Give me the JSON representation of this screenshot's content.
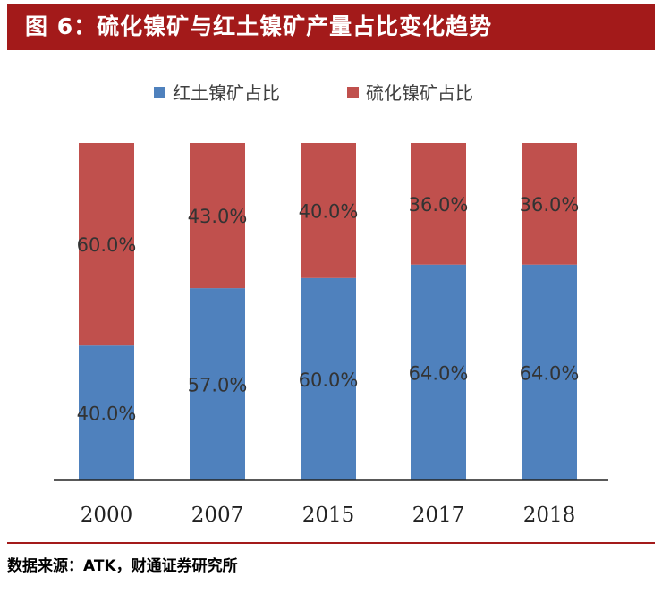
{
  "header": {
    "title": "图 6：硫化镍矿与红土镍矿产量占比变化趋势"
  },
  "footer": {
    "source": "数据来源：ATK，财通证券研究所"
  },
  "colors": {
    "laterite": "#4f81bd",
    "sulfide": "#c0504d",
    "accent": "#a31a1a"
  },
  "chart_data": {
    "type": "bar",
    "stacked": true,
    "title": "",
    "xlabel": "",
    "ylabel": "",
    "ylim": [
      0,
      100
    ],
    "categories": [
      "2000",
      "2007",
      "2015",
      "2017",
      "2018"
    ],
    "series": [
      {
        "name": "红土镍矿占比",
        "values": [
          40.0,
          57.0,
          60.0,
          64.0,
          64.0
        ],
        "labels": [
          "40.0%",
          "57.0%",
          "60.0%",
          "64.0%",
          "64.0%"
        ]
      },
      {
        "name": "硫化镍矿占比",
        "values": [
          60.0,
          43.0,
          40.0,
          36.0,
          36.0
        ],
        "labels": [
          "60.0%",
          "43.0%",
          "40.0%",
          "36.0%",
          "36.0%"
        ]
      }
    ],
    "legend": "top",
    "grid": false
  }
}
